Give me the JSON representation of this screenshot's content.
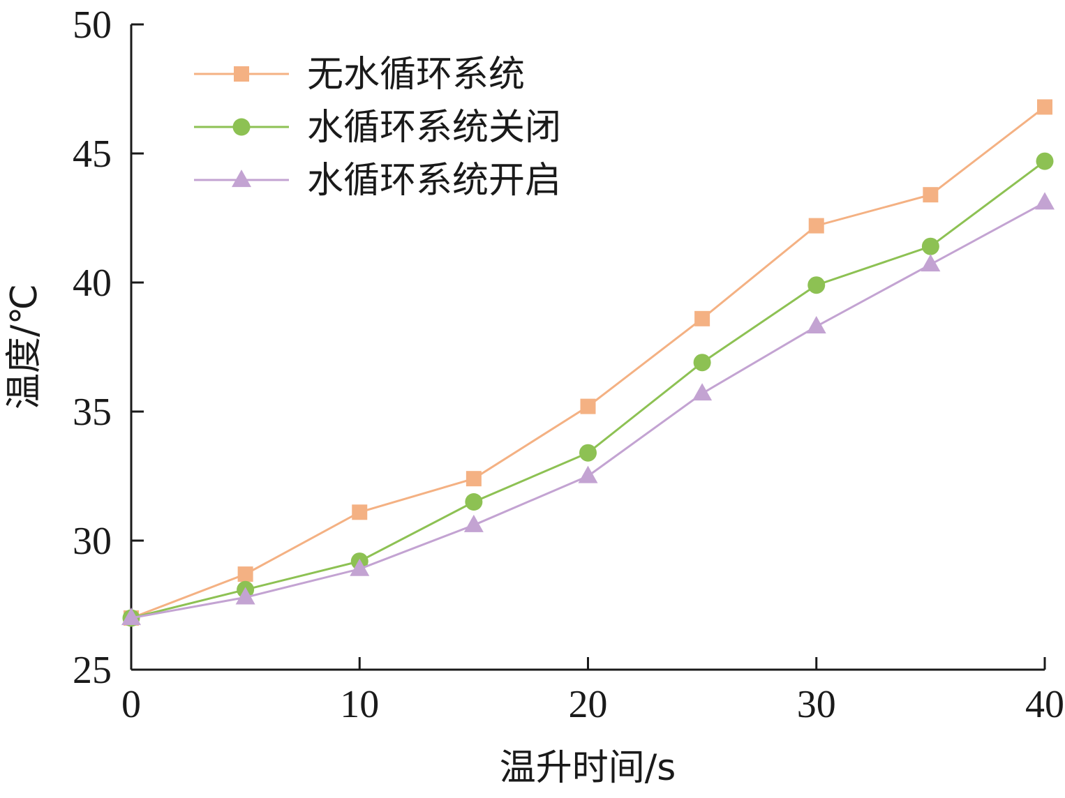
{
  "chart_data": {
    "type": "line",
    "title": "",
    "xlabel": "温升时间/s",
    "ylabel": "温度/℃",
    "xlim": [
      0,
      40
    ],
    "ylim": [
      25,
      50
    ],
    "xticks": [
      0,
      10,
      20,
      30,
      40
    ],
    "yticks": [
      25,
      30,
      35,
      40,
      45,
      50
    ],
    "x": [
      0,
      5,
      10,
      15,
      20,
      25,
      30,
      35,
      40
    ],
    "grid": false,
    "legend_position": "top-left",
    "series": [
      {
        "name": "无水循环系统",
        "marker": "square",
        "color": "#F4B183",
        "values": [
          27.0,
          28.7,
          31.1,
          32.4,
          35.2,
          38.6,
          42.2,
          43.4,
          46.8
        ]
      },
      {
        "name": "水循环系统关闭",
        "marker": "circle",
        "color": "#8DC153",
        "values": [
          27.0,
          28.1,
          29.2,
          31.5,
          33.4,
          36.9,
          39.9,
          41.4,
          44.7
        ]
      },
      {
        "name": "水循环系统开启",
        "marker": "triangle",
        "color": "#C3A3D2",
        "values": [
          27.0,
          27.8,
          28.9,
          30.6,
          32.5,
          35.7,
          38.3,
          40.7,
          43.1
        ]
      }
    ]
  }
}
